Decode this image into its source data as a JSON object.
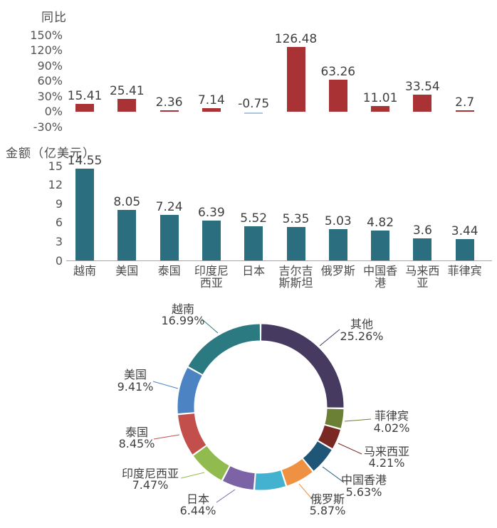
{
  "chart_data": [
    {
      "type": "bar",
      "title": "同比",
      "ylabel": "同比",
      "y_ticks": [
        "150%",
        "120%",
        "90%",
        "60%",
        "30%",
        "0%",
        "-30%"
      ],
      "ylim": [
        -30,
        150
      ],
      "grid": false,
      "values": [
        15.41,
        25.41,
        2.36,
        7.14,
        -0.75,
        126.48,
        63.26,
        11.01,
        33.54,
        2.7
      ],
      "value_labels": [
        "15.41",
        "25.41",
        "2.36",
        "7.14",
        "-0.75",
        "126.48",
        "63.26",
        "11.01",
        "33.54",
        "2.7"
      ],
      "bar_color": "#a93234",
      "negative_bar_color": "#a9c6e2",
      "label_color": "#3f3f3f"
    },
    {
      "type": "bar",
      "title": "金额（亿美元）",
      "ylabel": "金额（亿美元）",
      "y_ticks": [
        "15",
        "12",
        "9",
        "6",
        "3",
        "0"
      ],
      "ylim": [
        0,
        15
      ],
      "grid": false,
      "categories": [
        "越南",
        "美国",
        "泰国",
        "印度尼\n西亚",
        "日本",
        "吉尔吉\n斯斯坦",
        "俄罗斯",
        "中国香\n港",
        "马来西\n亚",
        "菲律宾"
      ],
      "values": [
        14.55,
        8.05,
        7.24,
        6.39,
        5.52,
        5.35,
        5.03,
        4.82,
        3.6,
        3.44
      ],
      "value_labels": [
        "14.55",
        "8.05",
        "7.24",
        "6.39",
        "5.52",
        "5.35",
        "5.03",
        "4.82",
        "3.6",
        "3.44"
      ],
      "bar_color": "#2b6e80",
      "label_color": "#3f3f3f"
    },
    {
      "type": "pie",
      "donut": true,
      "legend_position": "outside-labels-with-leader-lines",
      "segments": [
        {
          "label": "其他",
          "pct_label": "25.26%",
          "value": 25.26,
          "color": "#473a60"
        },
        {
          "label": "菲律宾",
          "pct_label": "4.02%",
          "value": 4.02,
          "color": "#6b7f35"
        },
        {
          "label": "马来西亚",
          "pct_label": "4.21%",
          "value": 4.21,
          "color": "#7a2823"
        },
        {
          "label": "中国香港",
          "pct_label": "5.63%",
          "value": 5.63,
          "color": "#1f5577"
        },
        {
          "label": "俄罗斯",
          "pct_label": "5.87%",
          "value": 5.87,
          "color": "#ef9143"
        },
        {
          "label": "",
          "pct_label": "",
          "value": 6.25,
          "color": "#42b2d0"
        },
        {
          "label": "日本",
          "pct_label": "6.44%",
          "value": 6.44,
          "color": "#7c63a6"
        },
        {
          "label": "印度尼西亚",
          "pct_label": "7.47%",
          "value": 7.47,
          "color": "#91bb4f"
        },
        {
          "label": "泰国",
          "pct_label": "8.45%",
          "value": 8.45,
          "color": "#c24f4b"
        },
        {
          "label": "美国",
          "pct_label": "9.41%",
          "value": 9.41,
          "color": "#4c83c3"
        },
        {
          "label": "越南",
          "pct_label": "16.99%",
          "value": 16.99,
          "color": "#2b7a81"
        }
      ]
    }
  ]
}
